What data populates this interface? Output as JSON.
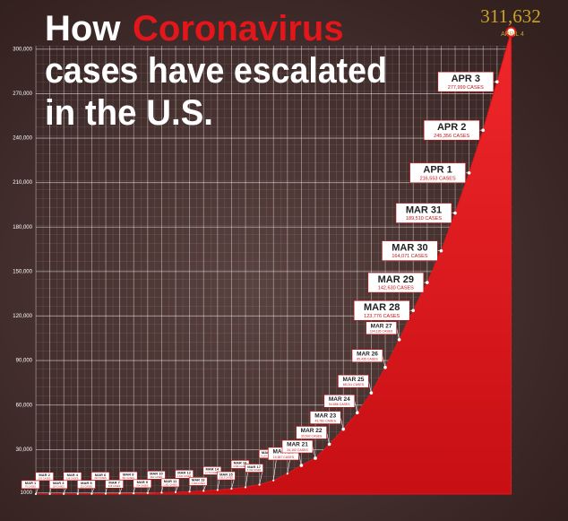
{
  "chart_data": {
    "type": "area",
    "title": [
      "How",
      "Coronavirus",
      "cases have escalated",
      "in the U.S."
    ],
    "categories": [
      "MAR 1",
      "MAR 2",
      "MAR 3",
      "MAR 4",
      "MAR 5",
      "MAR 6",
      "MAR 7",
      "MAR 8",
      "MAR 9",
      "MAR 10",
      "MAR 11",
      "MAR 12",
      "MAR 13",
      "MAR 14",
      "MAR 15",
      "MAR 16",
      "MAR 17",
      "MAR 18",
      "MAR 19",
      "MAR 20",
      "MAR 21",
      "MAR 22",
      "MAR 23",
      "MAR 24",
      "MAR 25",
      "MAR 26",
      "MAR 27",
      "MAR 28",
      "MAR 29",
      "MAR 30",
      "MAR 31",
      "APR 1",
      "APR 2",
      "APR 3",
      "APRIL 4"
    ],
    "values": [
      75,
      100,
      124,
      158,
      221,
      319,
      435,
      541,
      704,
      994,
      1301,
      1630,
      2183,
      2770,
      3613,
      4596,
      6344,
      9197,
      13779,
      19367,
      24192,
      33592,
      43781,
      54856,
      68211,
      85435,
      104126,
      123776,
      142630,
      164071,
      189510,
      216553,
      245356,
      277999,
      311632
    ],
    "value_labels": [
      "75 CASES",
      "100 CASES",
      "124 CASES",
      "158 CASES",
      "221 CASES",
      "319 CASES",
      "435 CASES",
      "541 CASES",
      "704 CASES",
      "994 CASES",
      "1,301 CASES",
      "1,630 CASES",
      "2,183 CASES",
      "2,770 CASES",
      "3,613 CASES",
      "4,596 CASES",
      "6,344 CASES",
      "9,197 CASES",
      "13,779 CASES",
      "19,367 CASES",
      "24,192 CASES",
      "33,592 CASES",
      "43,781 CASES",
      "54,856 CASES",
      "68,211 CASES",
      "85,435 CASES",
      "104,126 CASES",
      "123,776 CASES",
      "142,630 CASES",
      "164,071 CASES",
      "189,510 CASES",
      "216,553 CASES",
      "245,356 CASES",
      "277,999 CASES",
      "311,632"
    ],
    "color": "#e3161c",
    "ylim": [
      0,
      315000
    ],
    "yticks": [
      {
        "value": 1000,
        "label": "1000"
      },
      {
        "value": 30000,
        "label": "30,000"
      },
      {
        "value": 60000,
        "label": "60,000"
      },
      {
        "value": 90000,
        "label": "90,000"
      },
      {
        "value": 120000,
        "label": "120,000"
      },
      {
        "value": 150000,
        "label": "150,000"
      },
      {
        "value": 180000,
        "label": "180,000"
      },
      {
        "value": 210000,
        "label": "210,000"
      },
      {
        "value": 240000,
        "label": "240,000"
      },
      {
        "value": 270000,
        "label": "270,000"
      },
      {
        "value": 300000,
        "label": "300,000"
      }
    ],
    "grid": true
  }
}
